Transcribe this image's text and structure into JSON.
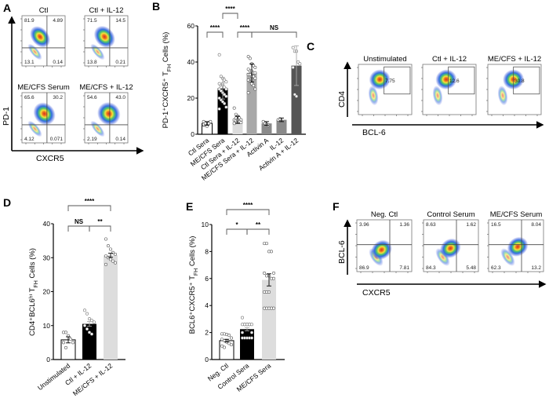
{
  "panel_letters": {
    "a": "A",
    "b": "B",
    "c": "C",
    "d": "D",
    "e": "E",
    "f": "F"
  },
  "panel_a": {
    "y_axis": "PD-1",
    "x_axis": "CXCR5",
    "plots": [
      {
        "title": "Ctl",
        "quadrants": {
          "top_left": "81.9",
          "top_right": "4.89",
          "bottom_left": "13.1",
          "bottom_right": "0.14"
        }
      },
      {
        "title": "Ctl + IL-12",
        "quadrants": {
          "top_left": "71.5",
          "top_right": "14.5",
          "bottom_left": "13.8",
          "bottom_right": "0.21"
        }
      },
      {
        "title": "ME/CFS Serum",
        "quadrants": {
          "top_left": "65.6",
          "top_right": "30.2",
          "bottom_left": "4.12",
          "bottom_right": "0.071"
        }
      },
      {
        "title": "ME/CFS + IL-12",
        "quadrants": {
          "top_left": "54.6",
          "top_right": "43.0",
          "bottom_left": "2.19",
          "bottom_right": "0.14"
        }
      }
    ]
  },
  "panel_c": {
    "y_axis": "CD4",
    "x_axis": "BCL-6",
    "plots": [
      {
        "title": "Unstimulated",
        "gate": "7.75"
      },
      {
        "title": "Ctl + IL-12",
        "gate": "12.6"
      },
      {
        "title": "ME/CFS + IL-12",
        "gate": "30.8"
      }
    ]
  },
  "panel_f": {
    "y_axis": "BCL-6",
    "x_axis": "CXCR5",
    "plots": [
      {
        "title": "Neg. Ctl",
        "quadrants": {
          "top_left": "3.96",
          "top_right": "1.36",
          "bottom_left": "86.9",
          "bottom_right": "7.81"
        }
      },
      {
        "title": "Control Serum",
        "quadrants": {
          "top_left": "8.63",
          "top_right": "1.62",
          "bottom_left": "84.3",
          "bottom_right": "5.48"
        }
      },
      {
        "title": "ME/CFS Serum",
        "quadrants": {
          "top_left": "16.5",
          "top_right": "8.04",
          "bottom_left": "62.3",
          "bottom_right": "13.2"
        }
      }
    ]
  },
  "chart_data": [
    {
      "panel": "B",
      "type": "bar",
      "ylabel": "PD-1⁺CXCR5⁺ T_FH Cells (%)",
      "ylim": [
        0,
        60
      ],
      "yticks": [
        "0",
        "20",
        "40",
        "60"
      ],
      "categories": [
        "Ctl Sera",
        "ME/CFS Sera",
        "Ctl Sera + IL-12",
        "ME/CFS Sera + IL-12",
        "Activin A",
        "IL-12",
        "Activin A + IL-12"
      ],
      "values": [
        6,
        25.5,
        8,
        34,
        6,
        8,
        38
      ],
      "errors": [
        1,
        6,
        2,
        5,
        1,
        1,
        11
      ],
      "bar_colors": [
        "#ffffff",
        "#000000",
        "#dcdcdc",
        "#a8a8a8",
        "#8a8a8a",
        "#8a8a8a",
        "#555555"
      ],
      "points": [
        [
          5,
          5.5,
          6,
          6,
          6.5,
          7,
          5,
          4.5,
          6,
          7,
          5.5,
          6
        ],
        [
          44,
          32,
          31,
          30,
          29,
          28,
          27,
          27,
          26,
          25,
          25,
          24,
          23,
          22,
          21,
          20,
          19,
          18,
          17,
          15,
          14,
          26,
          28
        ],
        [
          14.5,
          11,
          10,
          9,
          8,
          8,
          7.5,
          7,
          7,
          6.5,
          6,
          9,
          8
        ],
        [
          43,
          42,
          39,
          38,
          37,
          36,
          35,
          35,
          34,
          34,
          33,
          33,
          32,
          32,
          31,
          30,
          29,
          28,
          27,
          25,
          23
        ],
        [
          7,
          6,
          5.5,
          5
        ],
        [
          8,
          8.5
        ],
        [
          48,
          46,
          46,
          40,
          39,
          37,
          22,
          21
        ]
      ],
      "significance": [
        {
          "from": 0,
          "to": 1,
          "label": "****"
        },
        {
          "from": 1,
          "to": 2,
          "label": "****"
        },
        {
          "from": 2,
          "to": 3,
          "label": "****"
        },
        {
          "from": 3,
          "to": 6,
          "label": "NS"
        }
      ]
    },
    {
      "panel": "D",
      "type": "bar",
      "ylabel": "CD4⁺BCL6ʰⁱ T_FH Cells (%)",
      "ylim": [
        0,
        40
      ],
      "yticks": [
        "0",
        "10",
        "20",
        "30",
        "40"
      ],
      "categories": [
        "Unstimulated",
        "Ctl + IL-12",
        "ME/CFS + IL-12"
      ],
      "values": [
        5.8,
        10.5,
        30.7
      ],
      "errors": [
        0.9,
        0.7,
        0.6
      ],
      "bar_colors": [
        "#ffffff",
        "#000000",
        "#dddddd"
      ],
      "points": [
        [
          8,
          8,
          7,
          6,
          5,
          5,
          3.5
        ],
        [
          14.5,
          13.5,
          12,
          11.5,
          11,
          10,
          9,
          8,
          7.5
        ],
        [
          35.5,
          33.5,
          32.5,
          31.5,
          31,
          30.5,
          30,
          29.5,
          29,
          28.5,
          28
        ]
      ],
      "significance": [
        {
          "from": 0,
          "to": 2,
          "label": "****"
        },
        {
          "from": 0,
          "to": 1,
          "label": "NS"
        },
        {
          "from": 1,
          "to": 2,
          "label": "**"
        }
      ]
    },
    {
      "panel": "E",
      "type": "bar",
      "ylabel": "BCL6⁺CXCR5⁺ T_FH Cells (%)",
      "ylim": [
        0,
        10
      ],
      "yticks": [
        "0",
        "2",
        "4",
        "6",
        "8",
        "10"
      ],
      "categories": [
        "Neg. Ctl",
        "Control Sera",
        "ME/CFS Sera"
      ],
      "values": [
        1.4,
        2.25,
        5.9
      ],
      "errors": [
        0.1,
        0.12,
        0.45
      ],
      "bar_colors": [
        "#ffffff",
        "#000000",
        "#dddddd"
      ],
      "points": [
        [
          1.9,
          1.9,
          1.85,
          1.8,
          1.6,
          1.5,
          1.4,
          1.3,
          1.2,
          1.1,
          1.0,
          0.9,
          1.4
        ],
        [
          3.1,
          2.6,
          2.6,
          2.6,
          2.6,
          2.6,
          2.6,
          2.6,
          2.6,
          2.0,
          2.0,
          1.6,
          1.6,
          1.6,
          1.6,
          1.6
        ],
        [
          8.6,
          8.6,
          8.0,
          8.0,
          6.4,
          6.4,
          6.2,
          6.2,
          6.0,
          6.0,
          5.0,
          5.0,
          5.0,
          3.8,
          3.8,
          3.8,
          3.8,
          3.8
        ]
      ],
      "significance": [
        {
          "from": 0,
          "to": 2,
          "label": "****"
        },
        {
          "from": 0,
          "to": 1,
          "label": "*"
        },
        {
          "from": 1,
          "to": 2,
          "label": "**"
        }
      ]
    }
  ]
}
